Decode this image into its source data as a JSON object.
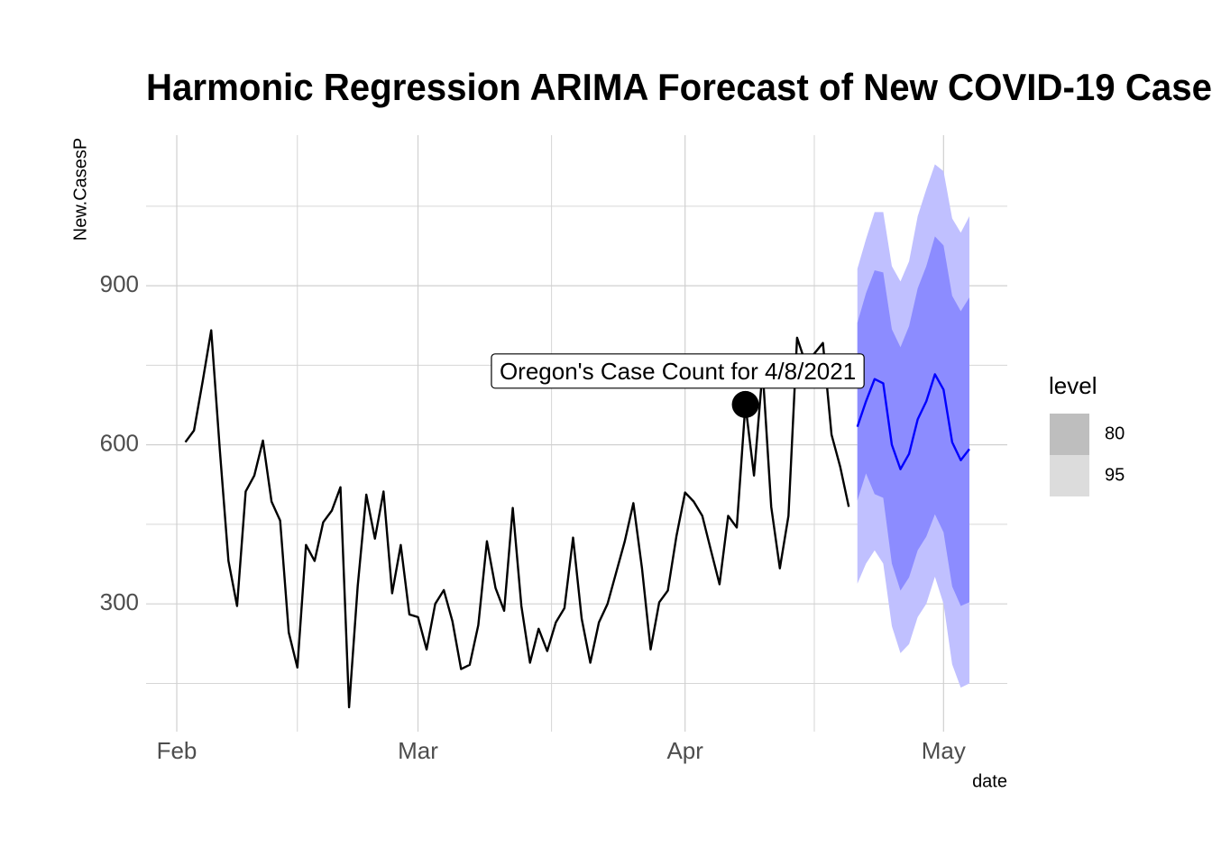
{
  "chart_data": {
    "type": "line",
    "title": "Harmonic Regression ARIMA Forecast of New COVID-19 Case",
    "x_label": "date",
    "y_label": "New.CasesP",
    "xlim": [
      28.44,
      128.4
    ],
    "xticks": [
      {
        "value": 32,
        "label": "Feb"
      },
      {
        "value": 60,
        "label": "Mar"
      },
      {
        "value": 91,
        "label": "Apr"
      },
      {
        "value": 121,
        "label": "May"
      }
    ],
    "minor_xticks": [
      46,
      75.5,
      106
    ],
    "ylim": [
      59,
      1184
    ],
    "yticks": [
      300,
      600,
      900
    ],
    "minor_yticks": [
      150,
      450,
      750,
      1050
    ],
    "grid": true,
    "series": [
      {
        "color": "#000000",
        "x": [
          33,
          34,
          35,
          36,
          37,
          38,
          39,
          40,
          41,
          42,
          43,
          44,
          45,
          46,
          47,
          48,
          49,
          50,
          51,
          52,
          53,
          54,
          55,
          56,
          57,
          58,
          59,
          60,
          61,
          62,
          63,
          64,
          65,
          66,
          67,
          68,
          69,
          70,
          71,
          72,
          73,
          74,
          75,
          76,
          77,
          78,
          79,
          80,
          81,
          82,
          83,
          84,
          85,
          86,
          87,
          88,
          89,
          90,
          91,
          92,
          93,
          94,
          95,
          96,
          97,
          98,
          99,
          100,
          101,
          102,
          103,
          104,
          105,
          106,
          107,
          108,
          109,
          110
        ],
        "values": [
          605,
          627,
          719,
          816,
          590,
          381,
          296,
          512,
          542,
          608,
          493,
          457,
          246,
          180,
          411,
          381,
          454,
          476,
          520,
          105,
          333,
          506,
          423,
          512,
          320,
          411,
          280,
          275,
          214,
          300,
          326,
          267,
          177,
          185,
          260,
          418,
          330,
          287,
          481,
          296,
          189,
          253,
          211,
          265,
          292,
          425,
          272,
          189,
          265,
          300,
          359,
          418,
          490,
          367,
          214,
          303,
          325,
          428,
          510,
          493,
          466,
          401,
          337,
          466,
          444,
          676,
          542,
          741,
          483,
          367,
          466,
          802,
          753,
          772,
          792,
          619,
          559,
          483
        ]
      },
      {
        "color": "#0000ff",
        "x": [
          111,
          112,
          113,
          114,
          115,
          116,
          117,
          118,
          119,
          120,
          121,
          122,
          123,
          124
        ],
        "values": [
          634,
          682,
          724,
          716,
          600,
          554,
          583,
          648,
          682,
          733,
          704,
          605,
          571,
          592
        ],
        "intervals": [
          {
            "level": "80",
            "color": "#8c8cff",
            "legend_color": "#bebebe",
            "upper": [
              830,
              886,
              929,
              925,
              818,
              784,
              824,
              895,
              937,
              993,
              976,
              881,
              852,
              878
            ],
            "lower": [
              495,
              546,
              507,
              500,
              376,
              325,
              350,
              401,
              427,
              469,
              435,
              333,
              296,
              303
            ]
          },
          {
            "level": "95",
            "color": "#c0c0ff",
            "legend_color": "#dcdcdc",
            "upper": [
              932,
              988,
              1039,
              1039,
              937,
              908,
              946,
              1031,
              1082,
              1129,
              1116,
              1027,
              1000,
              1031
            ],
            "lower": [
              338,
              376,
              401,
              376,
              258,
              207,
              224,
              275,
              300,
              351,
              300,
              186,
              142,
              150
            ]
          }
        ]
      }
    ],
    "legend_title": "level",
    "annotation": {
      "text": "Oregon's Case Count for 4/8/2021",
      "x": 98,
      "y": 676
    }
  }
}
